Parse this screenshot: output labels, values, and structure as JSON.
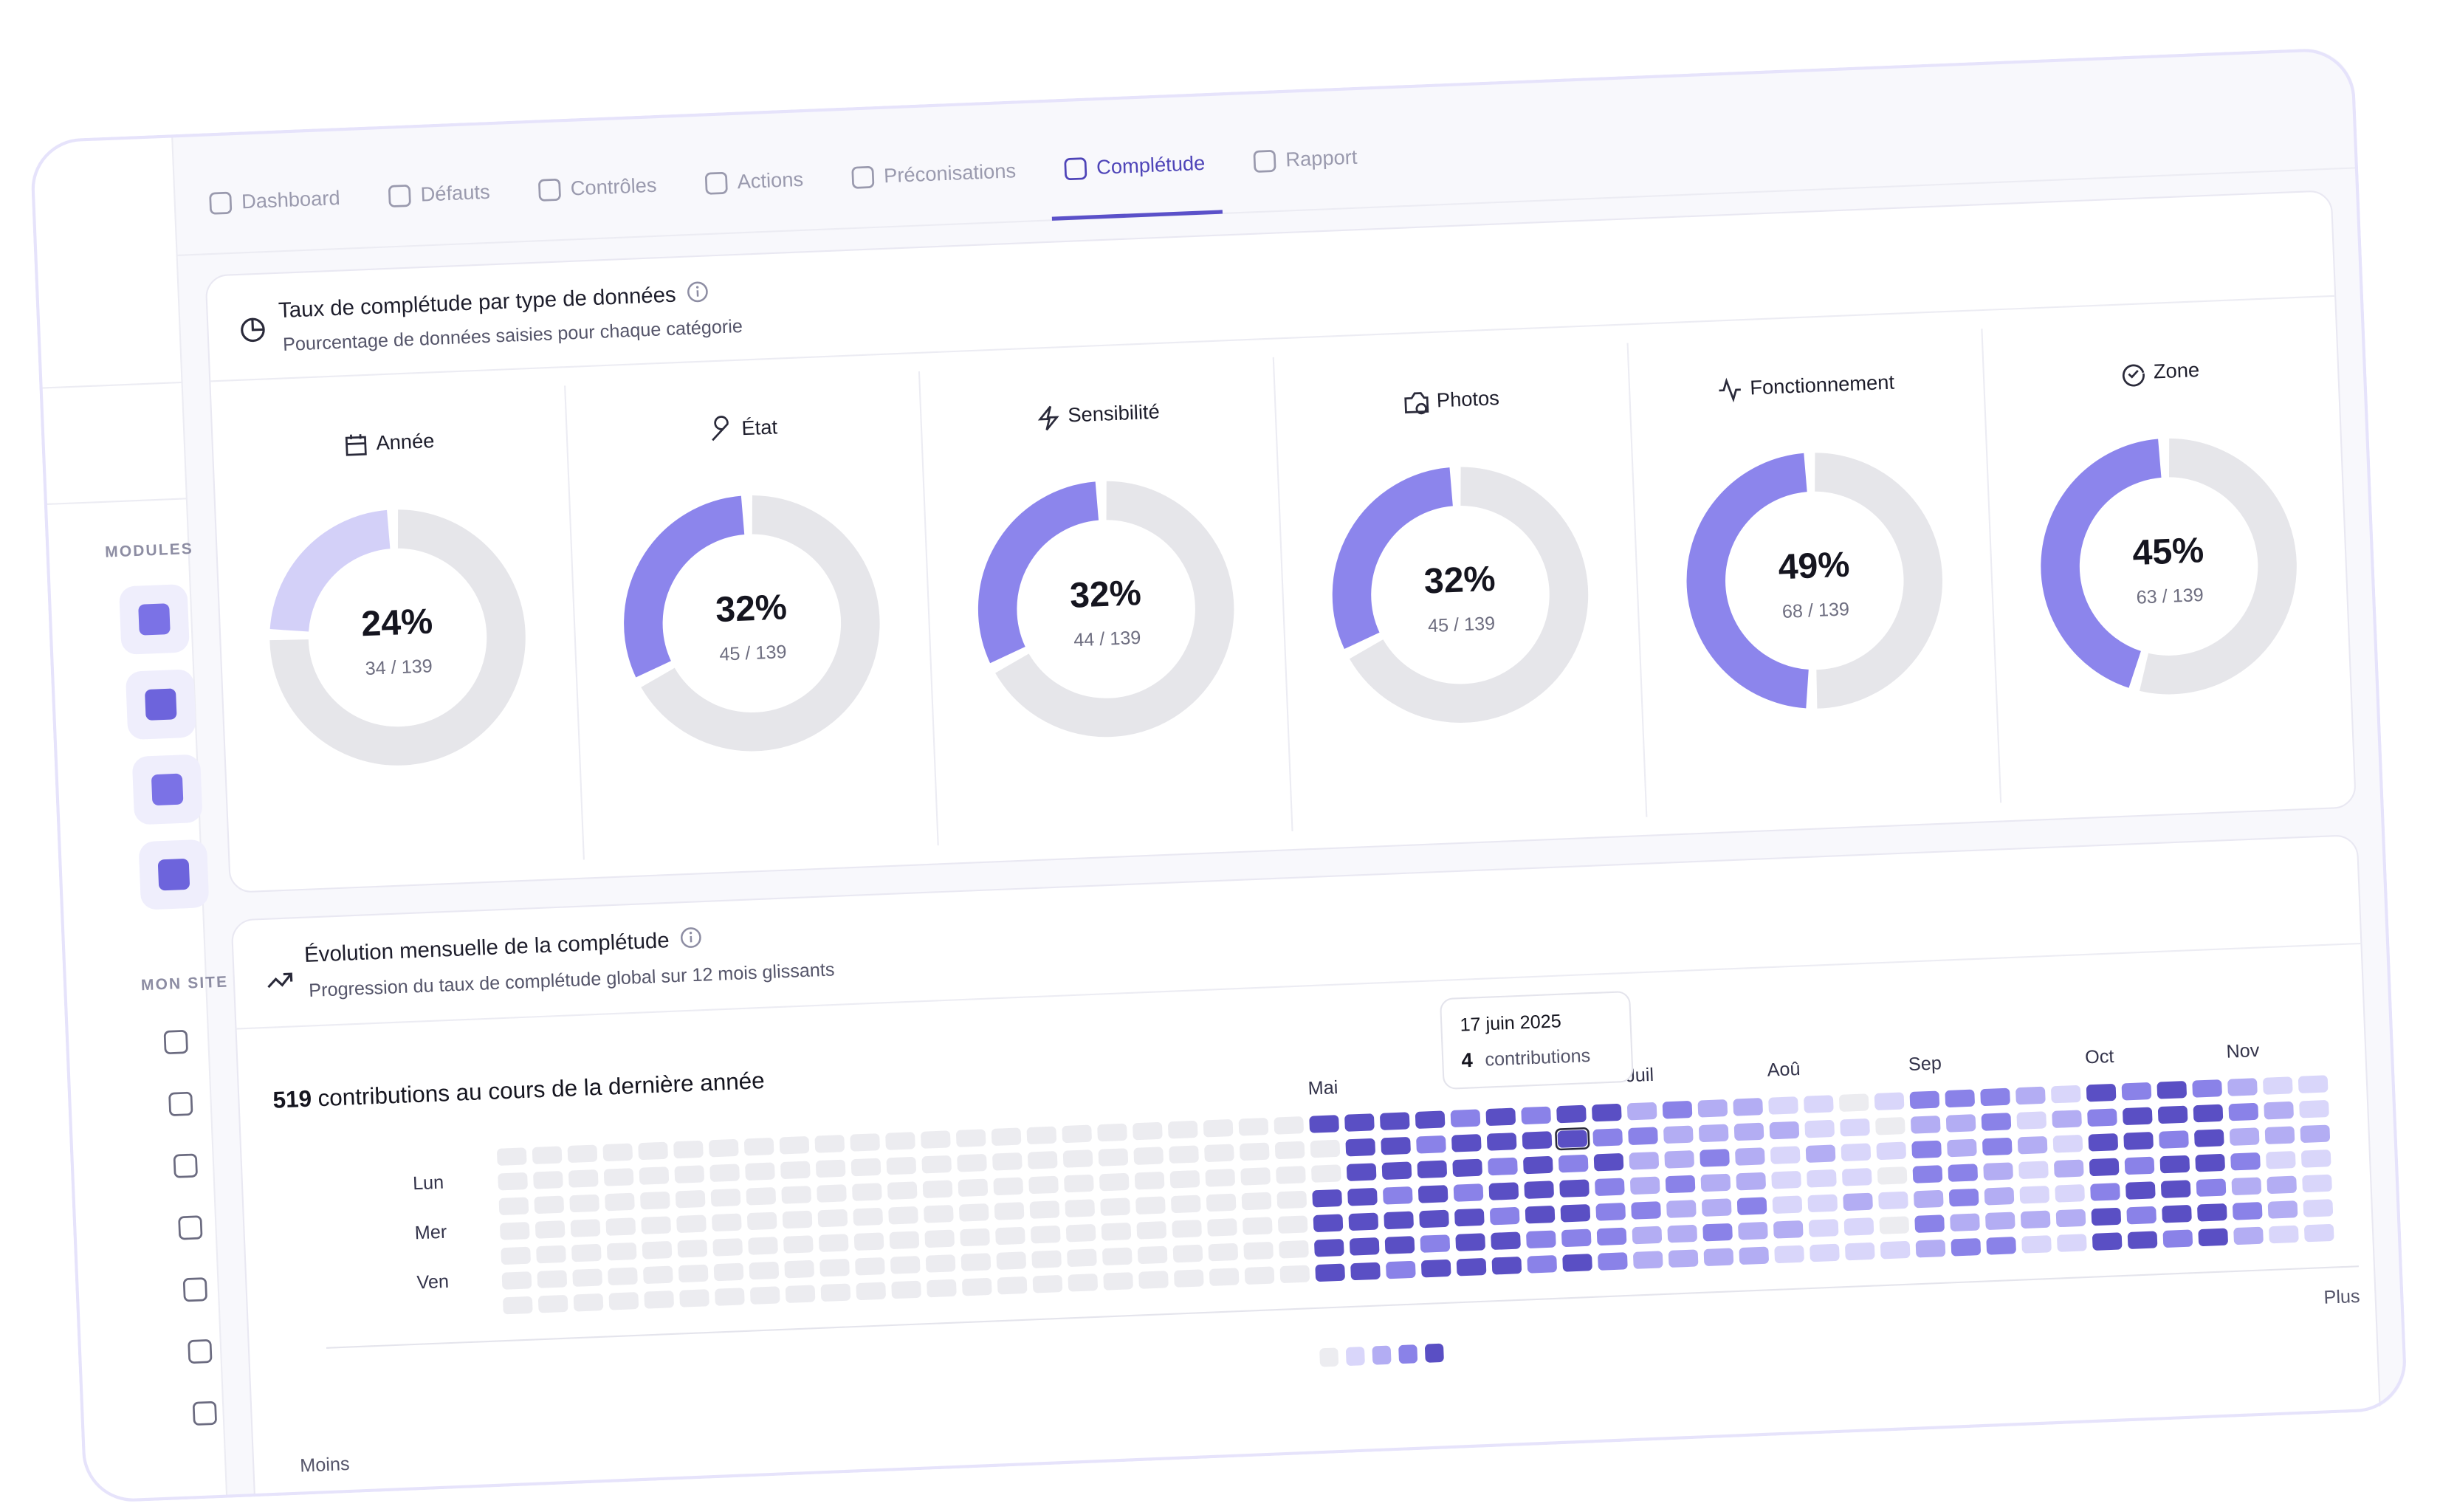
{
  "tabs": [
    {
      "label": "Dashboard"
    },
    {
      "label": "Défauts"
    },
    {
      "label": "Contrôles"
    },
    {
      "label": "Actions"
    },
    {
      "label": "Préconisations"
    },
    {
      "label": "Complétude",
      "active": true
    },
    {
      "label": "Rapport"
    }
  ],
  "sidebar": {
    "modules_label": "MODULES",
    "site_label": "MON SITE"
  },
  "completion_panel": {
    "title": "Taux de complétude par type de données",
    "subtitle": "Pourcentage de données saisies pour chaque catégorie"
  },
  "evolution_panel": {
    "title": "Évolution mensuelle de la complétude",
    "subtitle": "Progression du taux de complétude global sur 12 mois glissants"
  },
  "chart_data": [
    {
      "type": "donut",
      "title": "Année",
      "value": 24,
      "value_label": "24%",
      "sub_label": "34 / 139",
      "color": "#d3d0f8",
      "track_color": "#e6e6ea"
    },
    {
      "type": "donut",
      "title": "État",
      "value": 32,
      "value_label": "32%",
      "sub_label": "45 / 139",
      "color": "#8c85ec",
      "track_color": "#e6e6ea"
    },
    {
      "type": "donut",
      "title": "Sensibilité",
      "value": 32,
      "value_label": "32%",
      "sub_label": "44 / 139",
      "color": "#8c85ec",
      "track_color": "#e6e6ea"
    },
    {
      "type": "donut",
      "title": "Photos",
      "value": 32,
      "value_label": "32%",
      "sub_label": "45 / 139",
      "color": "#8c85ec",
      "track_color": "#e6e6ea"
    },
    {
      "type": "donut",
      "title": "Fonctionnement",
      "value": 49,
      "value_label": "49%",
      "sub_label": "68 / 139",
      "color": "#8c85ec",
      "track_color": "#e6e6ea"
    },
    {
      "type": "donut",
      "title": "Zone",
      "value": 45,
      "value_label": "45%",
      "sub_label": "63 / 139",
      "color": "#8c85ec",
      "track_color": "#e6e6ea"
    },
    {
      "type": "heatmap",
      "total": 519,
      "total_label": "contributions au cours de la dernière année",
      "x": [
        null,
        null,
        null,
        null,
        null,
        null,
        null,
        null,
        null,
        null,
        null,
        null,
        null,
        null,
        null,
        null,
        null,
        null,
        null,
        null,
        null,
        null,
        null,
        "Mai",
        null,
        null,
        null,
        null,
        null,
        null,
        null,
        null,
        "Juil",
        null,
        null,
        null,
        "Aoû",
        null,
        null,
        null,
        "Sep",
        null,
        null,
        null,
        null,
        "Oct",
        null,
        null,
        null,
        "Nov",
        null,
        null
      ],
      "y": [
        null,
        "Lun",
        null,
        "Mer",
        null,
        "Ven",
        null
      ],
      "values": [
        [
          0,
          0,
          0,
          0,
          0,
          0,
          0
        ],
        [
          0,
          0,
          0,
          0,
          0,
          0,
          0
        ],
        [
          0,
          0,
          0,
          0,
          0,
          0,
          0
        ],
        [
          0,
          0,
          0,
          0,
          0,
          0,
          0
        ],
        [
          0,
          0,
          0,
          0,
          0,
          0,
          0
        ],
        [
          0,
          0,
          0,
          0,
          0,
          0,
          0
        ],
        [
          0,
          0,
          0,
          0,
          0,
          0,
          0
        ],
        [
          0,
          0,
          0,
          0,
          0,
          0,
          0
        ],
        [
          0,
          0,
          0,
          0,
          0,
          0,
          0
        ],
        [
          0,
          0,
          0,
          0,
          0,
          0,
          0
        ],
        [
          0,
          0,
          0,
          0,
          0,
          0,
          0
        ],
        [
          0,
          0,
          0,
          0,
          0,
          0,
          0
        ],
        [
          0,
          0,
          0,
          0,
          0,
          0,
          0
        ],
        [
          0,
          0,
          0,
          0,
          0,
          0,
          0
        ],
        [
          0,
          0,
          0,
          0,
          0,
          0,
          0
        ],
        [
          0,
          0,
          0,
          0,
          0,
          0,
          0
        ],
        [
          0,
          0,
          0,
          0,
          0,
          0,
          0
        ],
        [
          0,
          0,
          0,
          0,
          0,
          0,
          0
        ],
        [
          0,
          0,
          0,
          0,
          0,
          0,
          0
        ],
        [
          0,
          0,
          0,
          0,
          0,
          0,
          0
        ],
        [
          0,
          0,
          0,
          0,
          0,
          0,
          0
        ],
        [
          0,
          0,
          0,
          0,
          0,
          0,
          0
        ],
        [
          0,
          0,
          0,
          0,
          0,
          0,
          0
        ],
        [
          4,
          0,
          0,
          4,
          4,
          4,
          4
        ],
        [
          4,
          4,
          4,
          4,
          4,
          4,
          4
        ],
        [
          4,
          4,
          4,
          3,
          4,
          4,
          3
        ],
        [
          4,
          3,
          4,
          4,
          4,
          3,
          4
        ],
        [
          3,
          4,
          4,
          3,
          4,
          4,
          4
        ],
        [
          4,
          4,
          3,
          4,
          3,
          4,
          4
        ],
        [
          3,
          4,
          4,
          4,
          4,
          3,
          3
        ],
        [
          4,
          4,
          3,
          4,
          4,
          3,
          4
        ],
        [
          4,
          3,
          4,
          3,
          3,
          3,
          3
        ],
        [
          2,
          3,
          2,
          2,
          3,
          2,
          2
        ],
        [
          3,
          2,
          2,
          3,
          2,
          2,
          2
        ],
        [
          2,
          2,
          3,
          2,
          2,
          3,
          2
        ],
        [
          2,
          2,
          2,
          2,
          3,
          2,
          2
        ],
        [
          1,
          2,
          1,
          1,
          1,
          2,
          1
        ],
        [
          1,
          1,
          2,
          1,
          1,
          1,
          1
        ],
        [
          0,
          1,
          1,
          1,
          2,
          1,
          1
        ],
        [
          1,
          0,
          1,
          0,
          1,
          0,
          1
        ],
        [
          3,
          2,
          3,
          3,
          2,
          3,
          2
        ],
        [
          3,
          2,
          2,
          3,
          3,
          2,
          3
        ],
        [
          3,
          3,
          3,
          2,
          2,
          2,
          3
        ],
        [
          2,
          1,
          2,
          1,
          1,
          2,
          1
        ],
        [
          1,
          2,
          1,
          2,
          1,
          2,
          1
        ],
        [
          4,
          3,
          4,
          4,
          3,
          4,
          4
        ],
        [
          3,
          4,
          4,
          3,
          4,
          3,
          4
        ],
        [
          4,
          4,
          3,
          4,
          4,
          4,
          3
        ],
        [
          3,
          4,
          4,
          4,
          3,
          4,
          4
        ],
        [
          2,
          3,
          2,
          3,
          2,
          3,
          2
        ],
        [
          1,
          2,
          2,
          1,
          2,
          2,
          1
        ],
        [
          1,
          1,
          2,
          1,
          1,
          1,
          1
        ]
      ],
      "colors": [
        "#ececf0",
        "#d9d6fa",
        "#b3adf3",
        "#8a82e8",
        "#5a4fc4"
      ],
      "legend_low": "Moins",
      "legend_high": "Plus",
      "tooltip": {
        "date": "17 juin 2025",
        "count": 4,
        "label": "contributions"
      }
    }
  ]
}
